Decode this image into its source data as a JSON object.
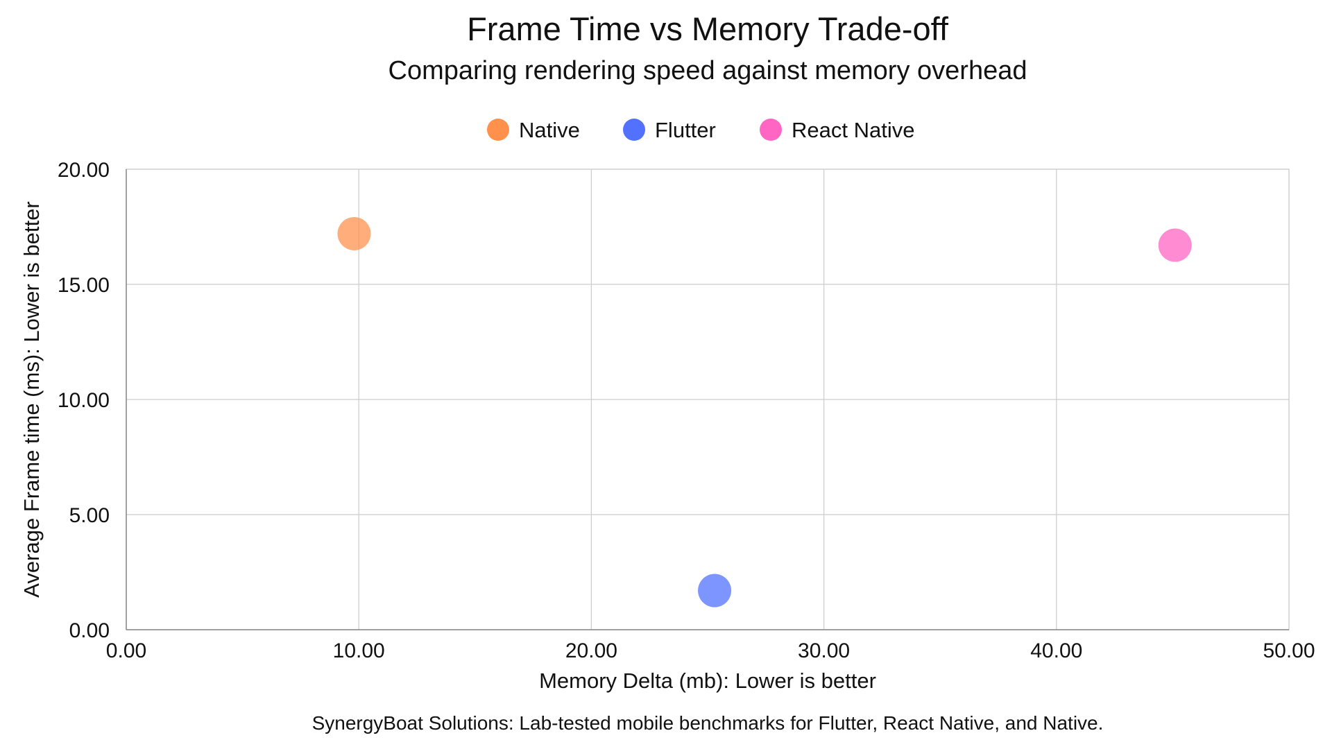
{
  "chart_data": {
    "type": "scatter",
    "title": "Frame Time vs Memory Trade-off",
    "subtitle": "Comparing rendering speed against memory overhead",
    "xlabel": "Memory Delta (mb): Lower is better",
    "ylabel": "Average Frame time (ms): Lower is better",
    "xlim": [
      0,
      50
    ],
    "ylim": [
      0,
      20
    ],
    "x_ticks": [
      "0.00",
      "10.00",
      "20.00",
      "30.00",
      "40.00",
      "50.00"
    ],
    "y_ticks": [
      "0.00",
      "5.00",
      "10.00",
      "15.00",
      "20.00"
    ],
    "grid": true,
    "legend_position": "top-center",
    "series": [
      {
        "name": "Native",
        "color": "#ff914d",
        "points": [
          {
            "x": 9.8,
            "y": 17.2
          }
        ]
      },
      {
        "name": "Flutter",
        "color": "#5271ff",
        "points": [
          {
            "x": 25.3,
            "y": 1.7
          }
        ]
      },
      {
        "name": "React Native",
        "color": "#ff66c4",
        "points": [
          {
            "x": 45.1,
            "y": 16.7
          }
        ]
      }
    ],
    "caption": "SynergyBoat Solutions: Lab-tested mobile benchmarks for Flutter, React Native, and Native."
  }
}
